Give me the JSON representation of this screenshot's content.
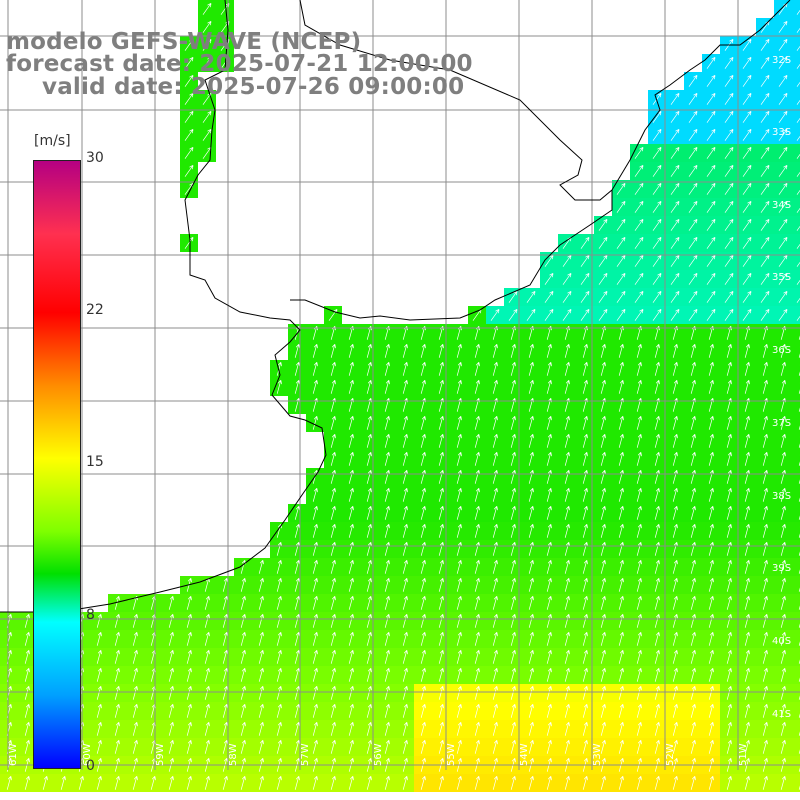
{
  "map": {
    "title_line1": "modelo GEFS-WAVE (NCEP)",
    "title_line2": "forecast date: 2025-07-21 12:00:00",
    "title_line3": "valid date: 2025-07-26 09:00:00",
    "colorbar": {
      "unit": "[m/s]",
      "ticks": [
        "30",
        "22",
        "15",
        "8",
        "0"
      ],
      "colors": [
        "#b40082",
        "#ff0000",
        "#ff8c00",
        "#ffff00",
        "#00e000",
        "#00ffff",
        "#0000ff"
      ]
    },
    "lon_labels": [
      "61W",
      "60W",
      "59W",
      "58W",
      "57W",
      "56W",
      "55W",
      "54W",
      "53W",
      "52W",
      "51W"
    ],
    "lat_labels": [
      "32S",
      "33S",
      "34S",
      "35S",
      "36S",
      "37S",
      "38S",
      "39S",
      "40S",
      "41S"
    ],
    "colors": {
      "land": "#ffffff",
      "coast": "#000000",
      "grid": "#8c8c8c",
      "arrow": "#ffffff",
      "title": "#7f7f7f"
    }
  }
}
